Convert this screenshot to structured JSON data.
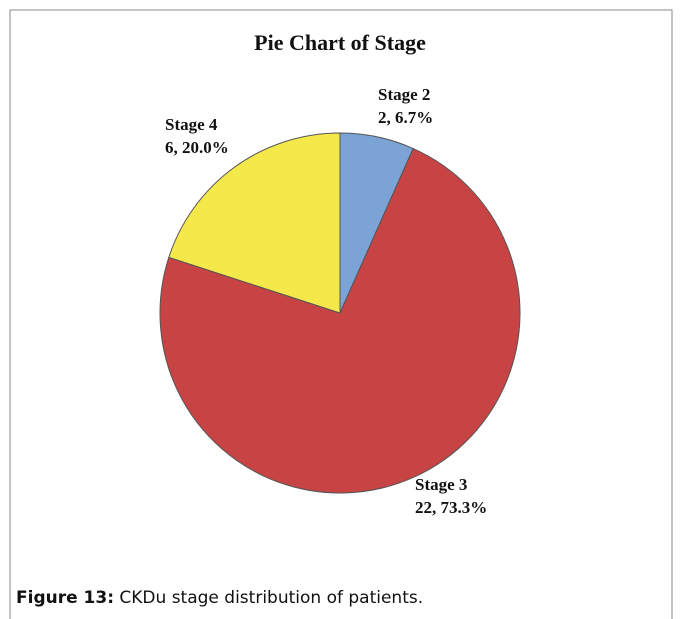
{
  "chart_data": {
    "type": "pie",
    "title": "Pie Chart of Stage",
    "categories": [
      "Stage 2",
      "Stage 3",
      "Stage 4"
    ],
    "values": [
      2,
      22,
      6
    ],
    "value_labels": [
      "2, 6.7%",
      "22, 73.3%",
      "6, 20.0%"
    ],
    "colors": [
      "#7ba3d6",
      "#c84444",
      "#f5e84a"
    ]
  },
  "caption": {
    "label": "Figure 13:",
    "text": "CKDu stage distribution of patients."
  }
}
